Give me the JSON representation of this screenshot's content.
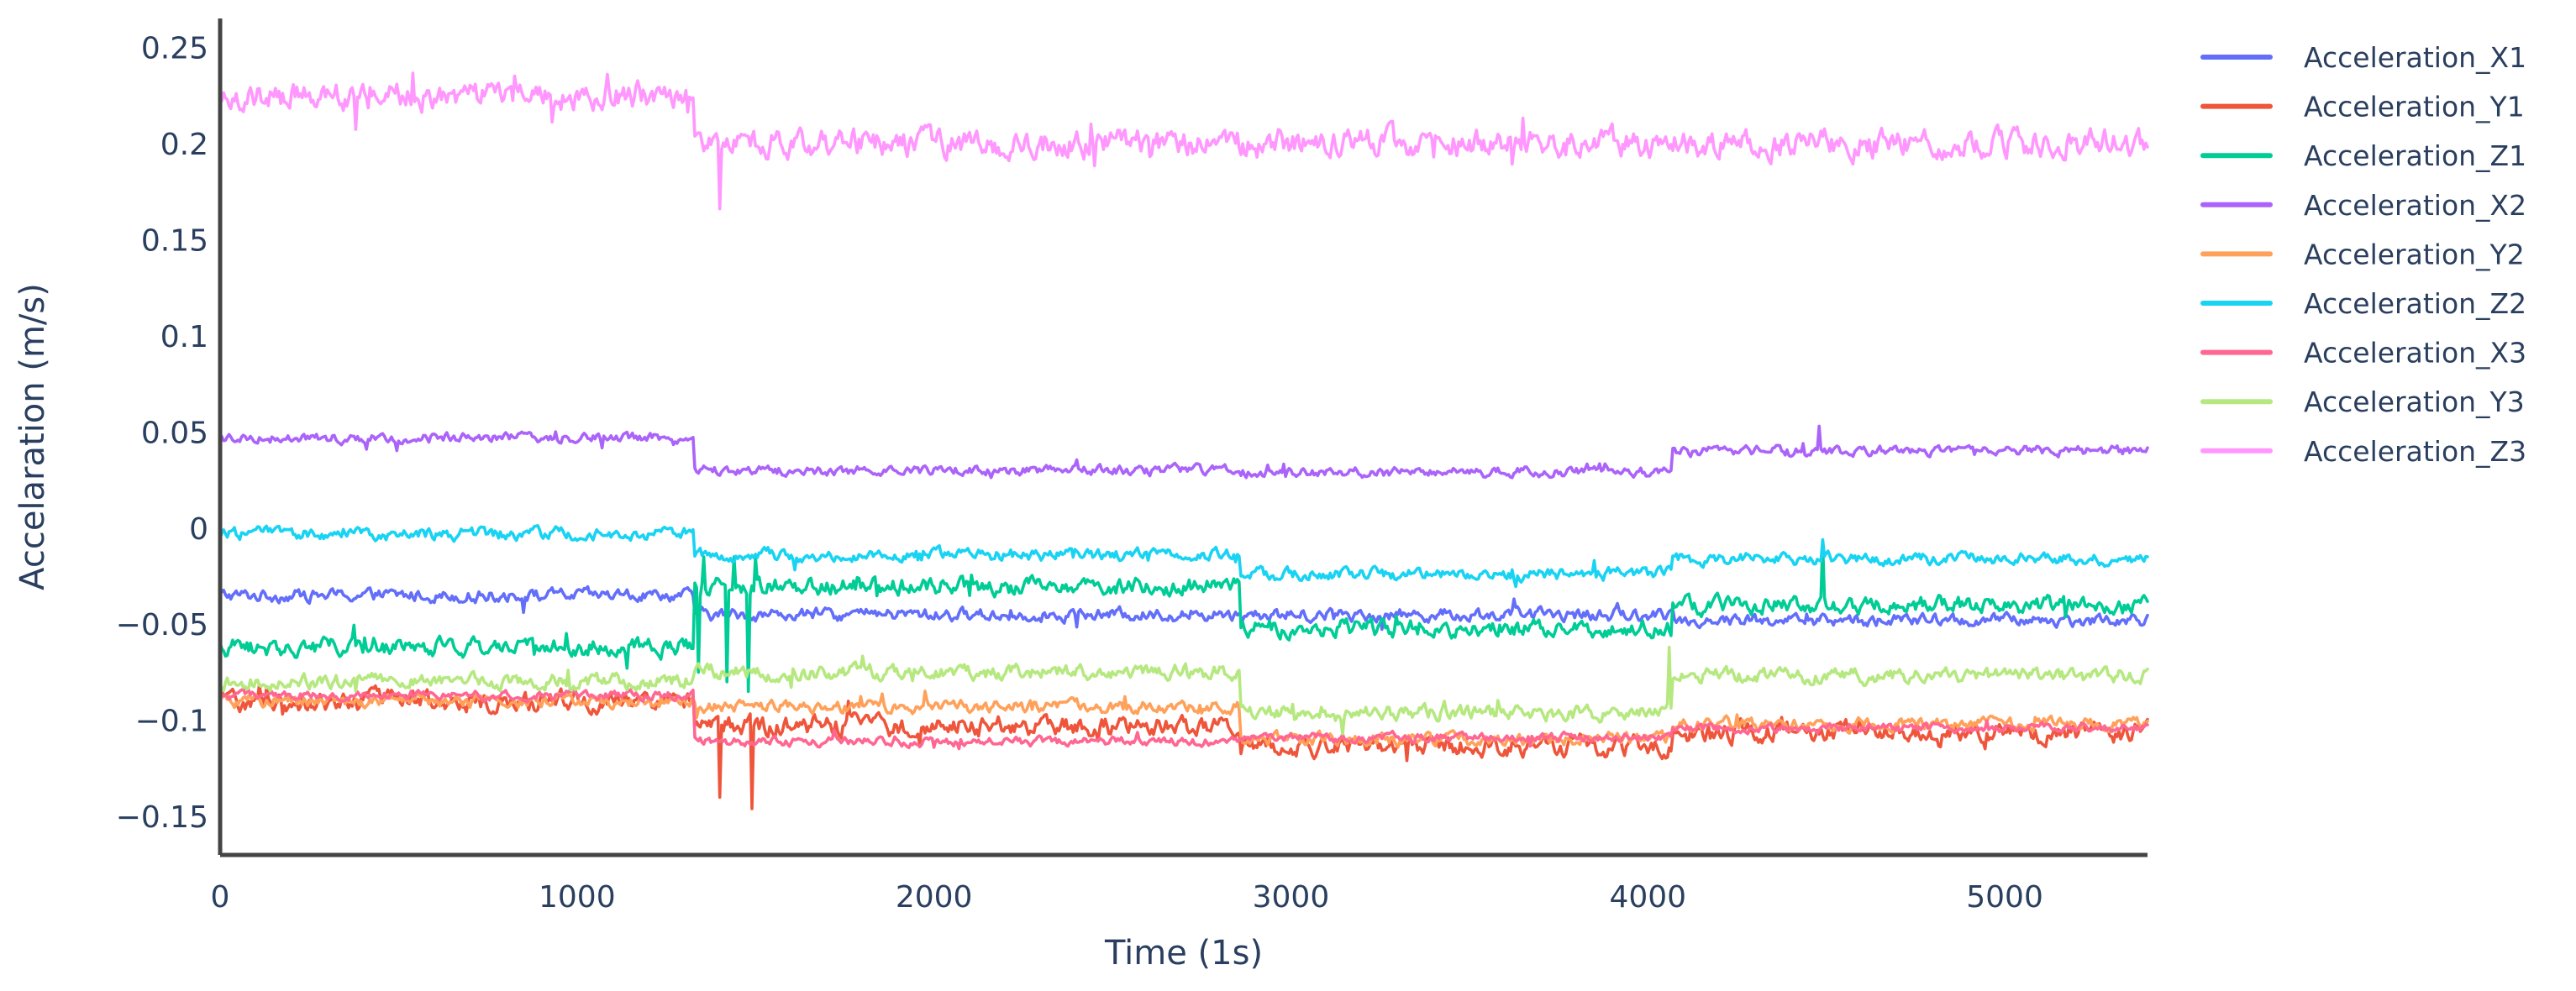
{
  "chart_data": {
    "type": "line",
    "title": "",
    "xlabel": "Time (1s)",
    "ylabel": "Accelaration (m/s)",
    "xlim": [
      0,
      5400
    ],
    "ylim": [
      -0.17,
      0.265
    ],
    "x_ticks": [
      "0",
      "1000",
      "2000",
      "3000",
      "4000",
      "5000"
    ],
    "x_tick_values": [
      0,
      1000,
      2000,
      3000,
      4000,
      5000
    ],
    "y_ticks": [
      "−0.15",
      "−0.1",
      "−0.05",
      "0",
      "0.05",
      "0.1",
      "0.15",
      "0.2",
      "0.25"
    ],
    "y_tick_values": [
      -0.15,
      -0.1,
      -0.05,
      0,
      0.05,
      0.1,
      0.15,
      0.2,
      0.25
    ],
    "grid": false,
    "legend_position": "right",
    "series": [
      {
        "name": "Acceleration_X1",
        "color": "#636efa",
        "noise": 0.0025,
        "segments": [
          [
            0,
            1330,
            -0.035
          ],
          [
            1330,
            2860,
            -0.045
          ],
          [
            2860,
            4070,
            -0.045
          ],
          [
            4070,
            5400,
            -0.048
          ]
        ],
        "spikes": []
      },
      {
        "name": "Acceleration_Y1",
        "color": "#ef553b",
        "noise": 0.004,
        "segments": [
          [
            0,
            1330,
            -0.09
          ],
          [
            1330,
            2860,
            -0.103
          ],
          [
            2860,
            4070,
            -0.113
          ],
          [
            4070,
            5400,
            -0.106
          ]
        ],
        "spikes": [
          [
            1400,
            -0.14
          ],
          [
            1490,
            -0.146
          ]
        ]
      },
      {
        "name": "Acceleration_Z1",
        "color": "#00cc96",
        "noise": 0.0035,
        "segments": [
          [
            0,
            1330,
            -0.062
          ],
          [
            1330,
            2860,
            -0.03
          ],
          [
            2860,
            4070,
            -0.052
          ],
          [
            4070,
            5400,
            -0.04
          ]
        ],
        "spikes": [
          [
            1340,
            -0.075
          ],
          [
            1355,
            -0.015
          ],
          [
            1420,
            -0.08
          ],
          [
            1440,
            -0.015
          ],
          [
            1480,
            -0.085
          ],
          [
            1500,
            -0.015
          ],
          [
            4490,
            -0.008
          ]
        ]
      },
      {
        "name": "Acceleration_X2",
        "color": "#ab63fa",
        "noise": 0.002,
        "segments": [
          [
            0,
            1330,
            0.047
          ],
          [
            1330,
            2860,
            0.03
          ],
          [
            2860,
            4070,
            0.029
          ],
          [
            4070,
            5400,
            0.04
          ]
        ],
        "spikes": [
          [
            4480,
            0.053
          ]
        ]
      },
      {
        "name": "Acceleration_Y2",
        "color": "#ffa15a",
        "noise": 0.0025,
        "segments": [
          [
            0,
            1330,
            -0.09
          ],
          [
            1330,
            2860,
            -0.093
          ],
          [
            2860,
            4070,
            -0.11
          ],
          [
            4070,
            5400,
            -0.102
          ]
        ],
        "spikes": []
      },
      {
        "name": "Acceleration_Z2",
        "color": "#19d3f3",
        "noise": 0.0025,
        "segments": [
          [
            0,
            1330,
            -0.003
          ],
          [
            1330,
            2860,
            -0.014
          ],
          [
            2860,
            4070,
            -0.024
          ],
          [
            4070,
            5400,
            -0.016
          ]
        ],
        "spikes": [
          [
            4490,
            -0.006
          ]
        ]
      },
      {
        "name": "Acceleration_X3",
        "color": "#ff6692",
        "noise": 0.0018,
        "segments": [
          [
            0,
            1330,
            -0.087
          ],
          [
            1330,
            2860,
            -0.111
          ],
          [
            2860,
            4070,
            -0.109
          ],
          [
            4070,
            5400,
            -0.104
          ]
        ],
        "spikes": []
      },
      {
        "name": "Acceleration_Y3",
        "color": "#b6e880",
        "noise": 0.003,
        "segments": [
          [
            0,
            1330,
            -0.08
          ],
          [
            1330,
            2860,
            -0.075
          ],
          [
            2860,
            4070,
            -0.096
          ],
          [
            4070,
            5400,
            -0.077
          ]
        ],
        "spikes": [
          [
            4060,
            -0.062
          ]
        ]
      },
      {
        "name": "Acceleration_Z3",
        "color": "#ff97ff",
        "noise": 0.0055,
        "segments": [
          [
            0,
            1330,
            0.225
          ],
          [
            1330,
            2860,
            0.2
          ],
          [
            2860,
            4070,
            0.2
          ],
          [
            4070,
            5400,
            0.2
          ]
        ],
        "spikes": [
          [
            1400,
            0.166
          ]
        ]
      }
    ]
  }
}
